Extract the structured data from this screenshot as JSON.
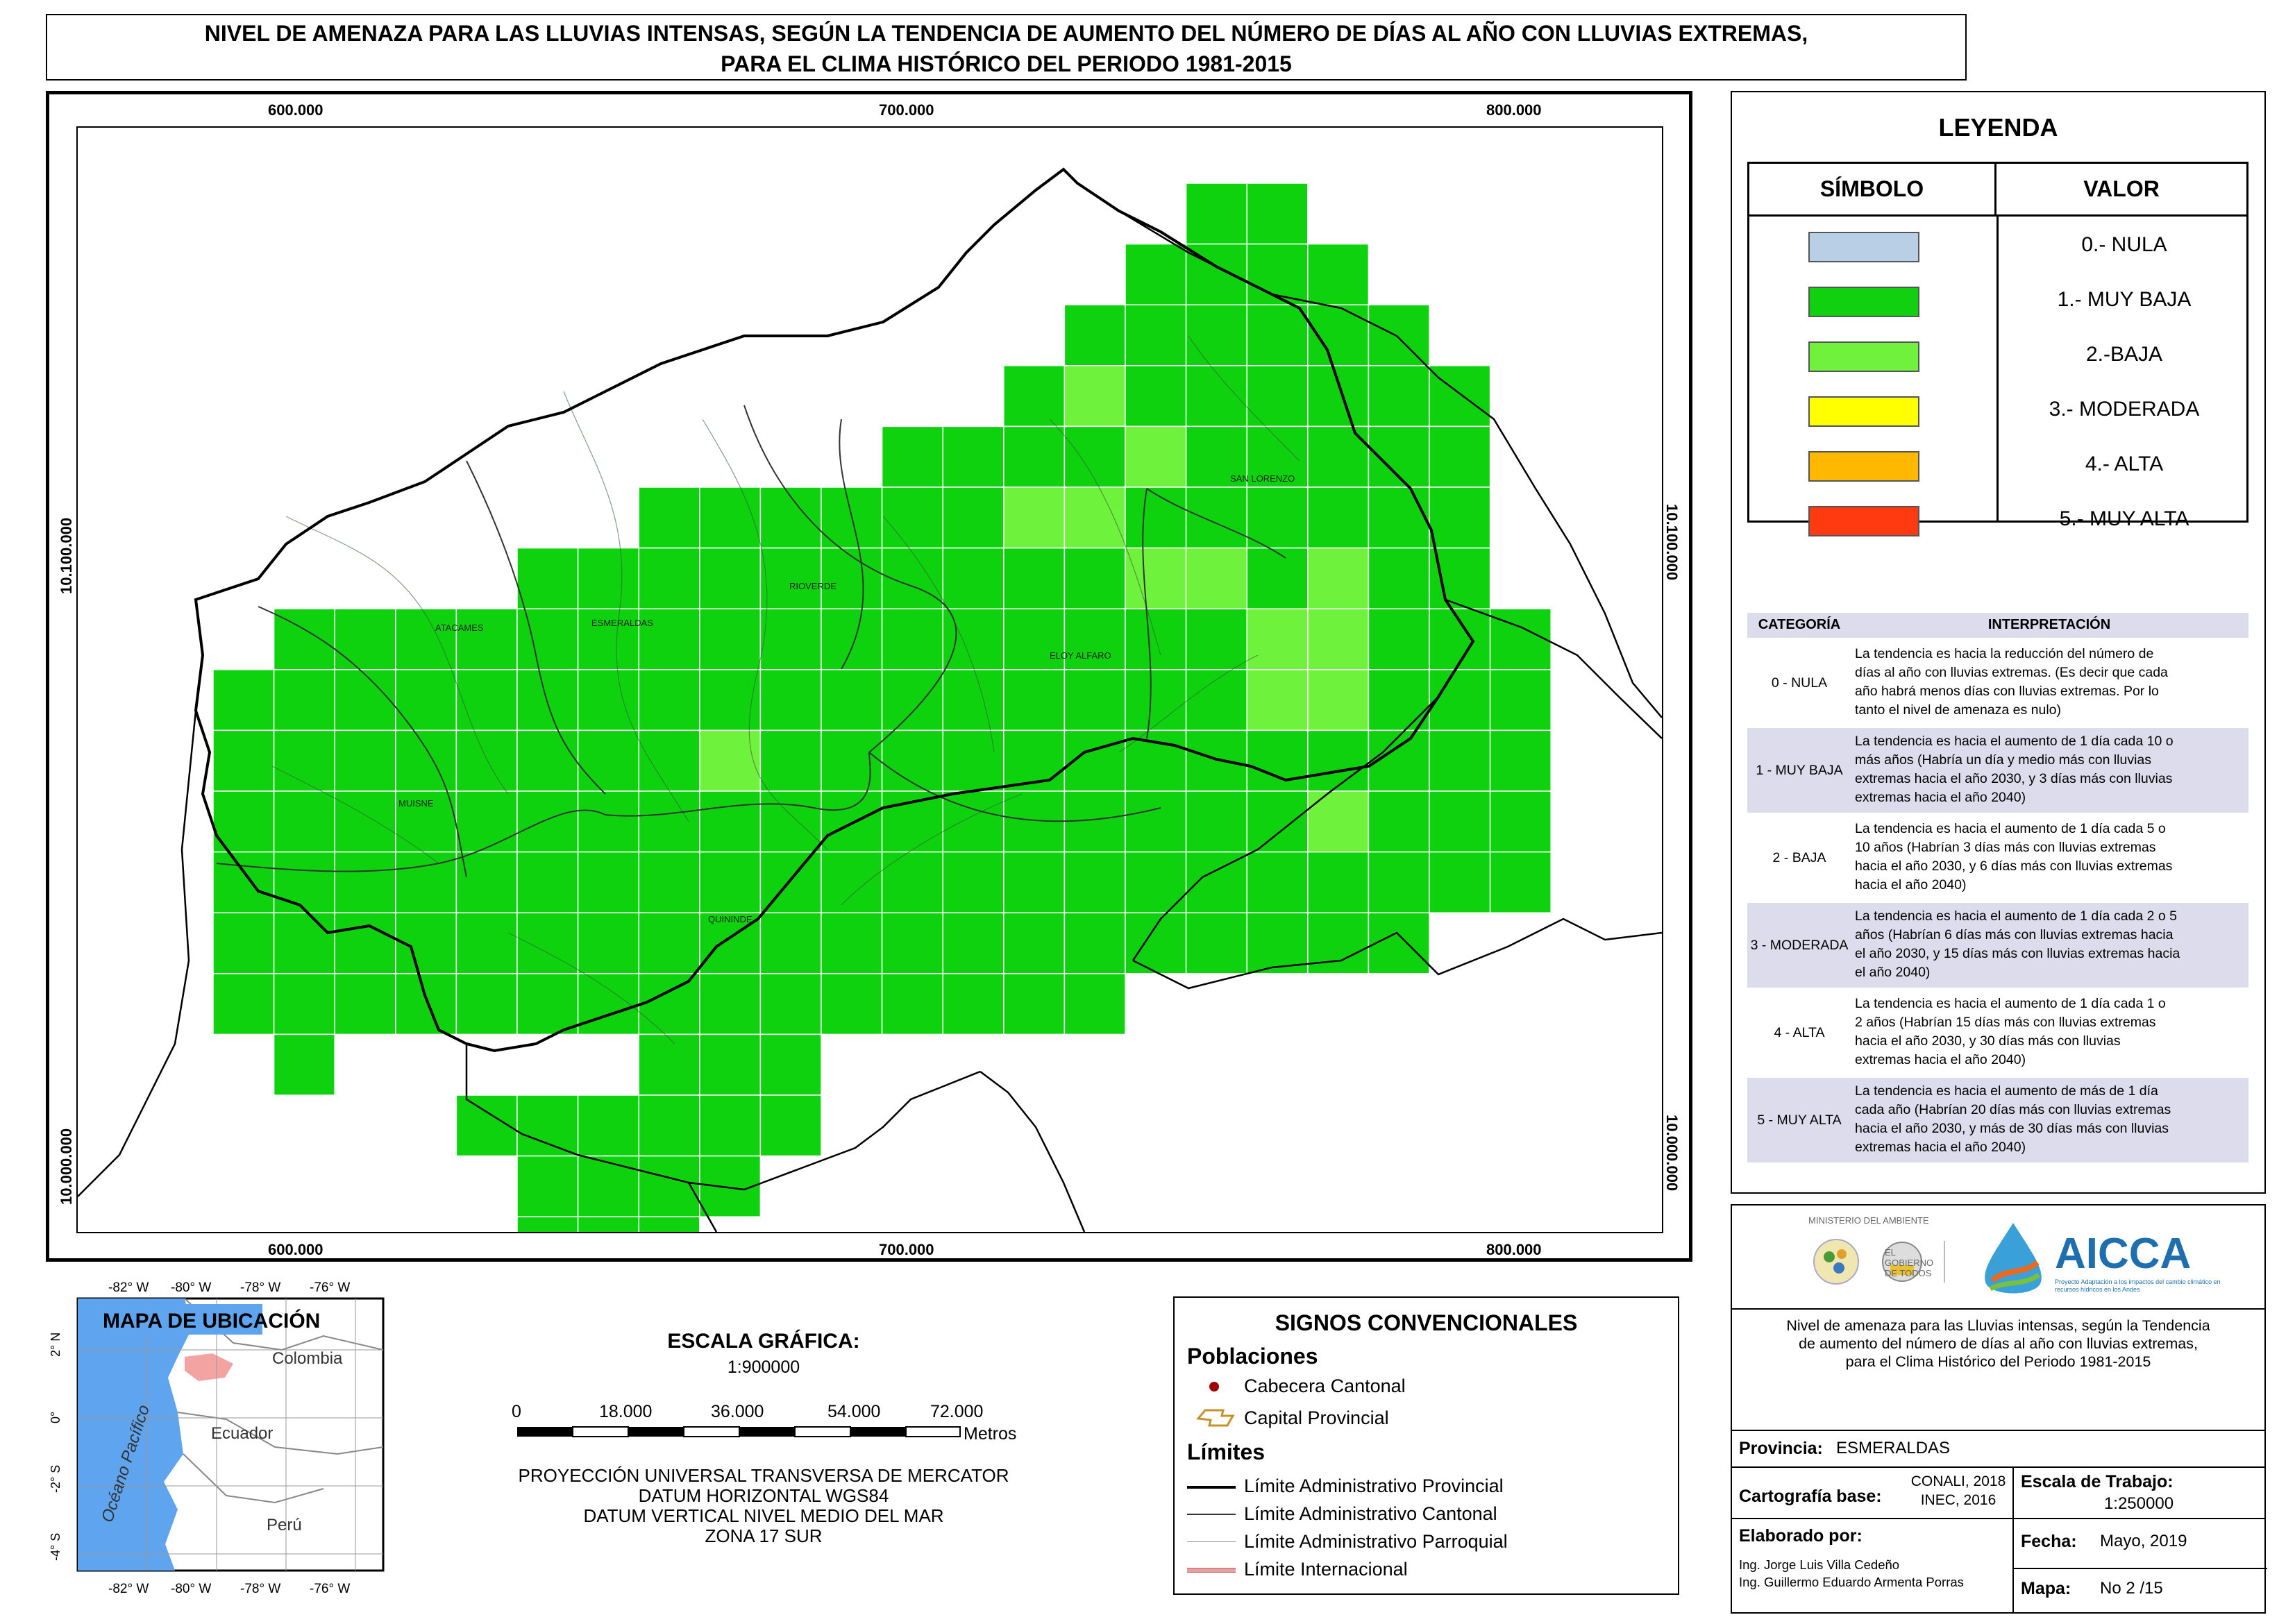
{
  "title": {
    "line1": "NIVEL DE AMENAZA PARA LAS LLUVIAS INTENSAS, SEGÚN LA TENDENCIA DE AUMENTO DEL NÚMERO DE DÍAS AL AÑO CON LLUVIAS EXTREMAS,",
    "line2": "PARA EL CLIMA HISTÓRICO DEL PERIODO 1981-2015"
  },
  "map": {
    "x_ticks": [
      "600.000",
      "700.000",
      "800.000"
    ],
    "y_ticks": [
      "10.100.000",
      "10.000.000"
    ],
    "place_labels": [
      "SAN LORENZO",
      "ATACAMES",
      "ESMERALDAS",
      "RIOVERDE",
      "ELOY ALFARO",
      "MUISNE",
      "QUININDE"
    ],
    "colors": {
      "muy_baja": "#0ed20e",
      "baja": "#6ff23c",
      "grid_line": "#ffffff",
      "boundary": "#000000"
    }
  },
  "legend": {
    "title": "LEYENDA",
    "col_symbol": "SÍMBOLO",
    "col_value": "VALOR",
    "items": [
      {
        "label": "0.- NULA",
        "color": "#b9cfe6"
      },
      {
        "label": "1.- MUY BAJA",
        "color": "#10d010"
      },
      {
        "label": "2.-BAJA",
        "color": "#70f23c"
      },
      {
        "label": "3.- MODERADA",
        "color": "#ffff00"
      },
      {
        "label": "4.- ALTA",
        "color": "#ffb800"
      },
      {
        "label": "5.- MUY ALTA",
        "color": "#ff3a10"
      }
    ]
  },
  "interpretation": {
    "col_category": "CATEGORÍA",
    "col_interp": "INTERPRETACIÓN",
    "rows": [
      {
        "category": "0 - NULA",
        "text": [
          "La tendencia es hacia la reducción del número de",
          "días al año con lluvias extremas. (Es decir que cada",
          "año habrá menos días con lluvias extremas. Por lo",
          "tanto el nivel de amenaza es nulo)"
        ]
      },
      {
        "category": "1 - MUY BAJA",
        "text": [
          "La tendencia es hacia el aumento de 1 día cada 10 o",
          "más años (Habría un día y medio más con lluvias",
          "extremas hacia el año 2030, y 3 días más con lluvias",
          "extremas hacia el año 2040)"
        ]
      },
      {
        "category": "2 - BAJA",
        "text": [
          "La tendencia es hacia el aumento de 1 día cada 5 o",
          "10 años (Habrían 3 días más con lluvias extremas",
          "hacia el año 2030, y 6 días más con lluvias extremas",
          "hacia el año 2040)"
        ]
      },
      {
        "category": "3 - MODERADA",
        "text": [
          "La tendencia es hacia el aumento de 1 día cada 2 o 5",
          "años (Habrían 6 días más con lluvias extremas hacia",
          "el año 2030, y 15 días más con lluvias extremas hacia",
          "el año 2040)"
        ]
      },
      {
        "category": "4 - ALTA",
        "text": [
          "La tendencia es hacia el aumento de 1 día cada 1 o",
          "2 años (Habrían 15 días más con lluvias extremas",
          "hacia el año 2030, y 30 días más con lluvias",
          "extremas hacia el año 2040)"
        ]
      },
      {
        "category": "5 - MUY ALTA",
        "text": [
          "La tendencia es hacia el aumento de más de 1 día",
          "cada año (Habrían 20 días más con lluvias extremas",
          "hacia el año 2030, y más de 30 días más con lluvias",
          "extremas hacia el año 2040)"
        ]
      }
    ]
  },
  "location_map": {
    "title": "MAPA DE UBICACIÓN",
    "lon_labels": [
      "-82° W",
      "-80° W",
      "-78° W",
      "-76° W"
    ],
    "lat_labels": [
      "2° N",
      "0°",
      "-2° S",
      "-4° S"
    ],
    "country_labels": [
      "Colombia",
      "Ecuador",
      "Perú"
    ],
    "ocean_label": "Océano Pacífico"
  },
  "scale": {
    "title": "ESCALA GRÁFICA:",
    "ratio": "1:900000",
    "ticks": [
      "0",
      "18.000",
      "36.000",
      "54.000",
      "72.000"
    ],
    "unit": "Metros",
    "projection": [
      "PROYECCIÓN UNIVERSAL TRANSVERSA DE MERCATOR",
      "DATUM HORIZONTAL WGS84",
      "DATUM VERTICAL NIVEL MEDIO DEL MAR",
      "ZONA 17 SUR"
    ]
  },
  "signs": {
    "title": "SIGNOS CONVENCIONALES",
    "poblaciones": "Poblaciones",
    "cabecera": "Cabecera Cantonal",
    "capital": "Capital Provincial",
    "limites": "Límites",
    "lim_prov": "Límite Administrativo Provincial",
    "lim_cant": "Límite Administrativo Cantonal",
    "lim_parr": "Límite Administrativo Parroquial",
    "lim_int": "Límite Internacional"
  },
  "info": {
    "ministerio": "MINISTERIO DEL AMBIENTE",
    "gobierno": "EL GOBIERNO DE TODOS",
    "aicca": "AICCA",
    "aicca_sub": "Proyecto Adaptación a los impactos del cambio climático en recursos hídricos en los Andes",
    "description": [
      "Nivel de amenaza para las Lluvias intensas, según la Tendencia",
      "de aumento del número de días al año con lluvias extremas,",
      "para el Clima Histórico del Periodo 1981-2015"
    ],
    "provincia_label": "Provincia:",
    "provincia_value": "ESMERALDAS",
    "cartografia_label": "Cartografía base:",
    "cartografia_value": [
      "CONALI, 2018",
      "INEC, 2016"
    ],
    "escala_label": "Escala de Trabajo:",
    "escala_value": "1:250000",
    "elaborado_label": "Elaborado por:",
    "elaborado_value": [
      "Ing. Jorge Luis Villa Cedeño",
      "Ing. Guillermo Eduardo Armenta Porras"
    ],
    "fecha_label": "Fecha:",
    "fecha_value": "Mayo, 2019",
    "mapa_label": "Mapa:",
    "mapa_value": "No 2 /15"
  }
}
